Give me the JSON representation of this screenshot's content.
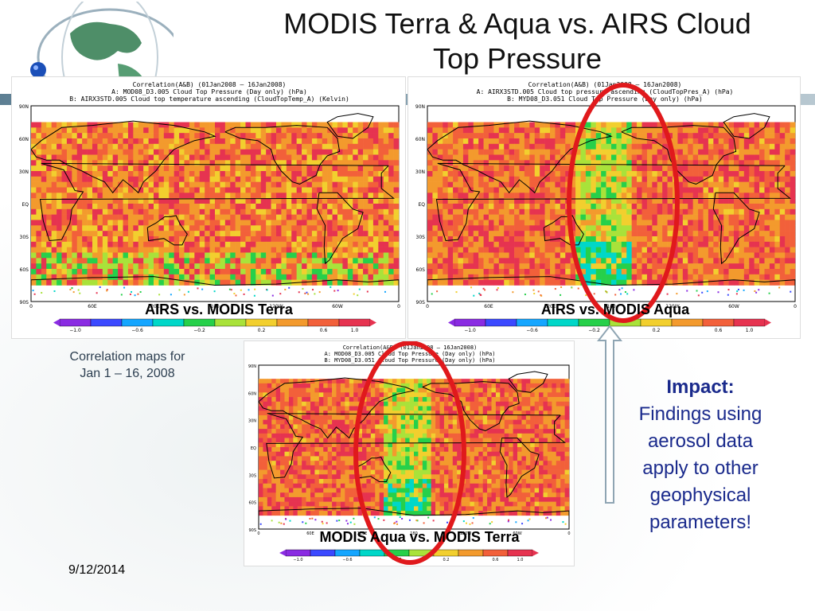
{
  "slide": {
    "title_line1": "MODIS Terra &  Aqua vs. AIRS Cloud",
    "title_line2": "Top Pressure",
    "caption_line1": "Correlation maps for",
    "caption_line2": "Jan 1 – 16, 2008",
    "impact_heading": "Impact:",
    "impact_lines": [
      "Findings using",
      "aerosol data",
      "apply to other",
      "geophysical",
      "parameters!"
    ],
    "date": "9/12/2014"
  },
  "panels": [
    {
      "label": "AIRS vs. MODIS Terra",
      "header_line1": "Correlation(A&B) (01Jan2008 – 16Jan2008)",
      "header_line2": "A: MOD08_D3.005 Cloud Top Pressure (Day only) (hPa)",
      "header_line3": "B: AIRX3STD.005 Cloud top temperature ascending (CloudTopTemp_A) (Kelvin)",
      "highlight": "none"
    },
    {
      "label": "AIRS vs. MODIS Aqua",
      "header_line1": "Correlation(A&B) (01Jan2008 – 16Jan2008)",
      "header_line2": "A: AIRX3STD.005 Cloud top pressure_ascending (CloudTopPres_A) (hPa)",
      "header_line3": "B: MYD08_D3.051 Cloud Top Pressure (Day only) (hPa)",
      "highlight": "red-oval-pacific"
    },
    {
      "label": "MODIS Aqua vs. MODIS Terra",
      "header_line1": "Correlation(A&B) (01Jan2008 – 16Jan2008)",
      "header_line2": "A: MOD08_D3.005 Cloud Top Pressure (Day only) (hPa)",
      "header_line3": "B: MYD08_D3.051 Cloud Top Pressure (Day only) (hPa)",
      "highlight": "red-oval-pacific"
    }
  ],
  "map_axes": {
    "lat_ticks": [
      "90N",
      "60N",
      "30N",
      "EQ",
      "30S",
      "60S",
      "90S"
    ],
    "lon_ticks": [
      "0",
      "60E",
      "120E",
      "180",
      "120W",
      "60W",
      "0"
    ]
  },
  "colorbar": {
    "tick_labels": [
      "−1.0",
      "−0.6",
      "−0.2",
      "0.2",
      "0.6",
      "1.0"
    ],
    "colors": [
      "#8a2be2",
      "#3b49ff",
      "#15a6ff",
      "#00d7c8",
      "#26d04a",
      "#a9e23a",
      "#f2cf2e",
      "#f39a2d",
      "#f2603a",
      "#e63350"
    ]
  },
  "colors": {
    "ocean_dominant": "#f08a3a",
    "low_corr": "#4fc0e0",
    "mid_corr": "#8bd34a",
    "land_line": "#000000",
    "highlight": "#e0191c",
    "impact_text": "#1a2a8c"
  },
  "icons": {
    "globe": "globe-icon",
    "arrow": "up-arrow-icon"
  }
}
